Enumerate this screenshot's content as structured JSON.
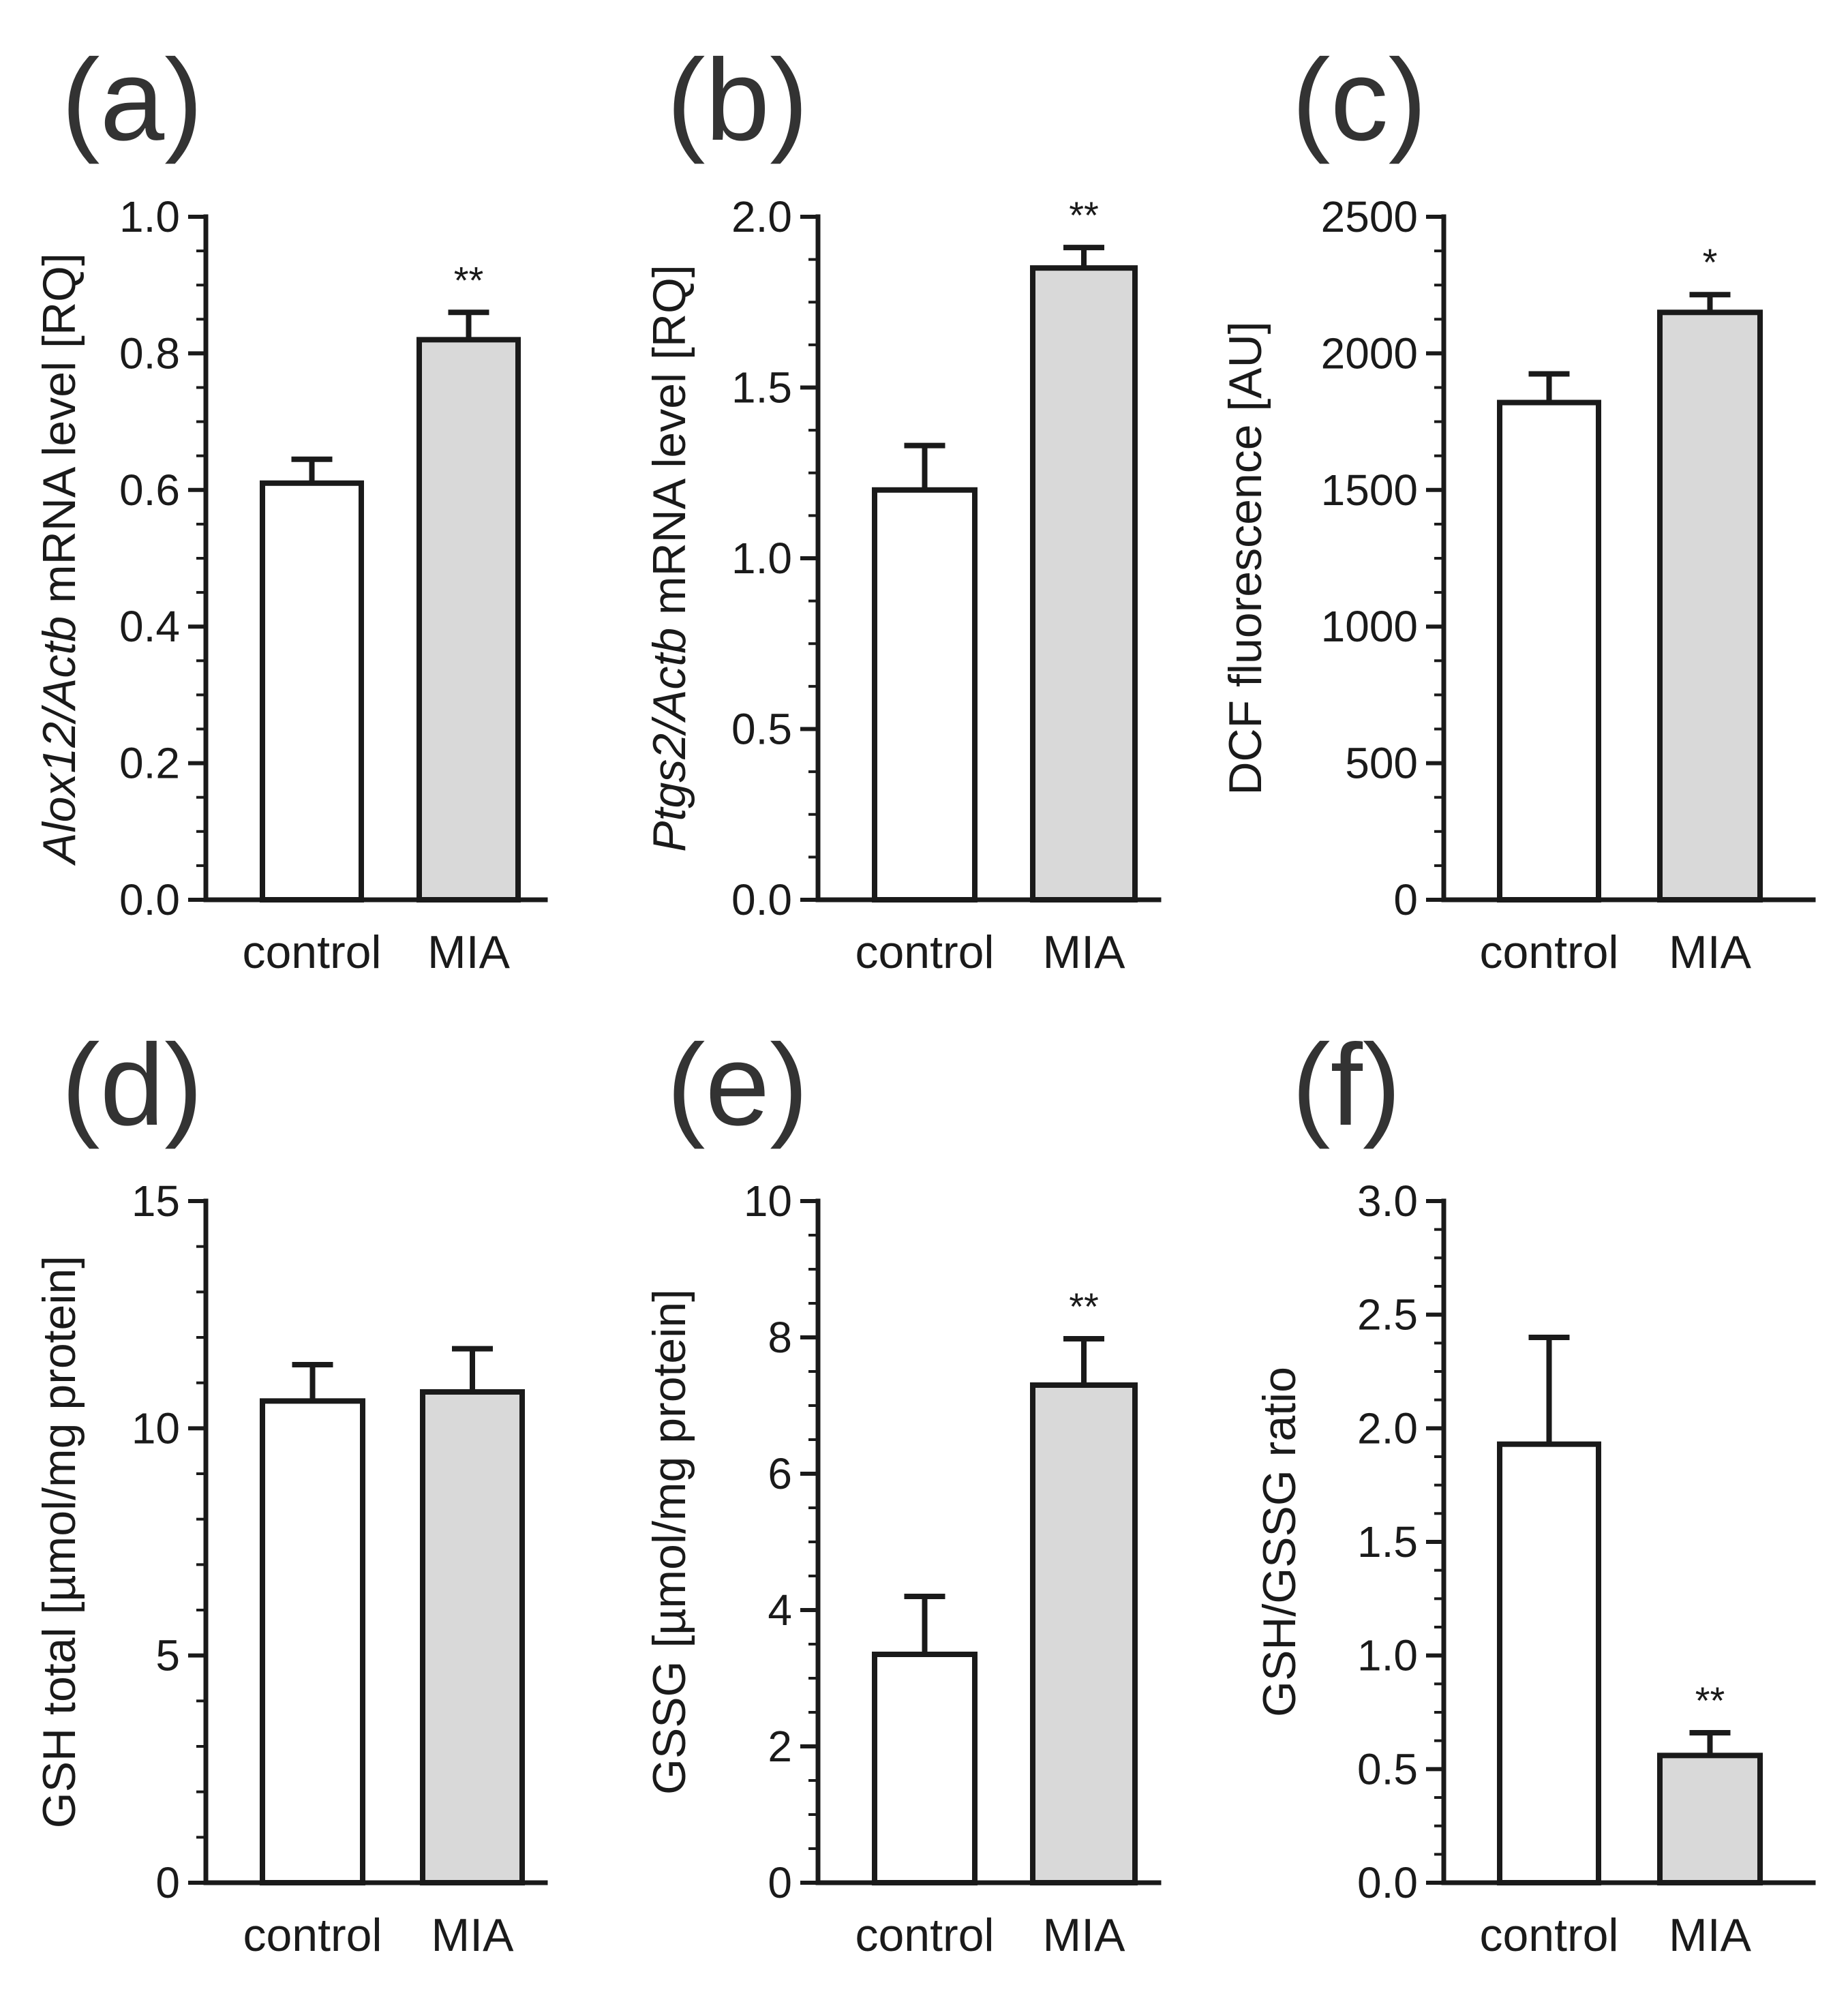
{
  "chart_data": [
    {
      "id": "a",
      "panel_label": "(a)",
      "type": "bar",
      "categories": [
        "control",
        "MIA"
      ],
      "values": [
        0.61,
        0.82
      ],
      "errors": [
        0.035,
        0.04
      ],
      "significance": [
        "",
        "**"
      ],
      "bar_colors": [
        "#ffffff",
        "#d9d9d9"
      ],
      "ylabel_parts": [
        {
          "text": "Alox12/Actb",
          "italic": true
        },
        {
          "text": " mRNA level [RQ]",
          "italic": false
        }
      ],
      "ylim": [
        0,
        1.0
      ],
      "yticks": [
        0.0,
        0.2,
        0.4,
        0.6,
        0.8,
        1.0
      ],
      "ytick_labels": [
        "0.0",
        "0.2",
        "0.4",
        "0.6",
        "0.8",
        "1.0"
      ],
      "minor_ticks_per_interval": 4
    },
    {
      "id": "b",
      "panel_label": "(b)",
      "type": "bar",
      "categories": [
        "control",
        "MIA"
      ],
      "values": [
        1.2,
        1.85
      ],
      "errors": [
        0.13,
        0.06
      ],
      "significance": [
        "",
        "**"
      ],
      "bar_colors": [
        "#ffffff",
        "#d9d9d9"
      ],
      "ylabel_parts": [
        {
          "text": "Ptgs2/Actb",
          "italic": true
        },
        {
          "text": " mRNA level [RQ]",
          "italic": false
        }
      ],
      "ylim": [
        0,
        2.0
      ],
      "yticks": [
        0.0,
        0.5,
        1.0,
        1.5,
        2.0
      ],
      "ytick_labels": [
        "0.0",
        "0.5",
        "1.0",
        "1.5",
        "2.0"
      ],
      "minor_ticks_per_interval": 4
    },
    {
      "id": "c",
      "panel_label": "(c)",
      "type": "bar",
      "categories": [
        "control",
        "MIA"
      ],
      "values": [
        1820,
        2150
      ],
      "errors": [
        105,
        65
      ],
      "significance": [
        "",
        "*"
      ],
      "bar_colors": [
        "#ffffff",
        "#d9d9d9"
      ],
      "ylabel_parts": [
        {
          "text": "DCF fluorescence [AU]",
          "italic": false
        }
      ],
      "ylim": [
        0,
        2500
      ],
      "yticks": [
        0,
        500,
        1000,
        1500,
        2000,
        2500
      ],
      "ytick_labels": [
        "0",
        "500",
        "1000",
        "1500",
        "2000",
        "2500"
      ],
      "minor_ticks_per_interval": 4
    },
    {
      "id": "d",
      "panel_label": "(d)",
      "type": "bar",
      "categories": [
        "control",
        "MIA"
      ],
      "values": [
        10.6,
        10.8
      ],
      "errors": [
        0.8,
        0.95
      ],
      "significance": [
        "",
        ""
      ],
      "bar_colors": [
        "#ffffff",
        "#d9d9d9"
      ],
      "ylabel_parts": [
        {
          "text": "GSH total [µmol/mg protein]",
          "italic": false
        }
      ],
      "ylim": [
        0,
        15
      ],
      "yticks": [
        0,
        5,
        10,
        15
      ],
      "ytick_labels": [
        "0",
        "5",
        "10",
        "15"
      ],
      "minor_ticks_per_interval": 5
    },
    {
      "id": "e",
      "panel_label": "(e)",
      "type": "bar",
      "categories": [
        "control",
        "MIA"
      ],
      "values": [
        3.35,
        7.3
      ],
      "errors": [
        0.85,
        0.68
      ],
      "significance": [
        "",
        "**"
      ],
      "bar_colors": [
        "#ffffff",
        "#d9d9d9"
      ],
      "ylabel_parts": [
        {
          "text": "GSSG [µmol/mg protein]",
          "italic": false
        }
      ],
      "ylim": [
        0,
        10
      ],
      "yticks": [
        0,
        2,
        4,
        6,
        8,
        10
      ],
      "ytick_labels": [
        "0",
        "2",
        "4",
        "6",
        "8",
        "10"
      ],
      "minor_ticks_per_interval": 4
    },
    {
      "id": "f",
      "panel_label": "(f)",
      "type": "bar",
      "categories": [
        "control",
        "MIA"
      ],
      "values": [
        1.93,
        0.56
      ],
      "errors": [
        0.47,
        0.1
      ],
      "significance": [
        "",
        "**"
      ],
      "bar_colors": [
        "#ffffff",
        "#d9d9d9"
      ],
      "ylabel_parts": [
        {
          "text": "GSH/GSSG ratio",
          "italic": false
        }
      ],
      "ylim": [
        0,
        3.0
      ],
      "yticks": [
        0.0,
        0.5,
        1.0,
        1.5,
        2.0,
        2.5,
        3.0
      ],
      "ytick_labels": [
        "0.0",
        "0.5",
        "1.0",
        "1.5",
        "2.0",
        "2.5",
        "3.0"
      ],
      "minor_ticks_per_interval": 4
    }
  ]
}
